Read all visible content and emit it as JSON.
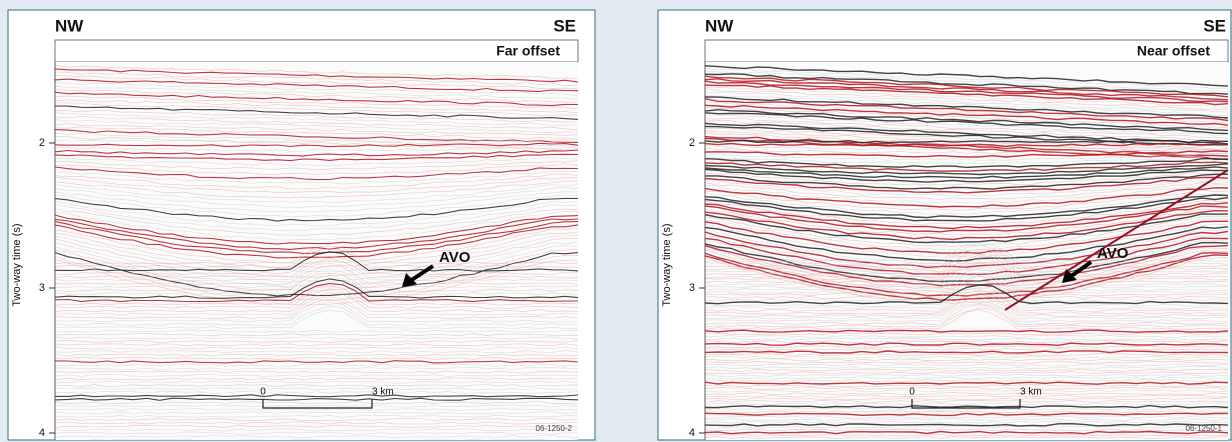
{
  "panels": [
    {
      "left_label": "NW",
      "right_label": "SE",
      "title": "Far offset",
      "y_axis_label": "Two-way time (s)",
      "yticks": [
        2,
        3,
        4
      ],
      "annotation": "AVO",
      "scale_start": "0",
      "scale_end": "3 km",
      "figure_id": "06-1250-2"
    },
    {
      "left_label": "NW",
      "right_label": "SE",
      "title": "Near offset",
      "y_axis_label": "Two-way time (s)",
      "yticks": [
        2,
        3,
        4
      ],
      "annotation": "AVO",
      "scale_start": "0",
      "scale_end": "3 km",
      "figure_id": "06-1250-1"
    }
  ]
}
